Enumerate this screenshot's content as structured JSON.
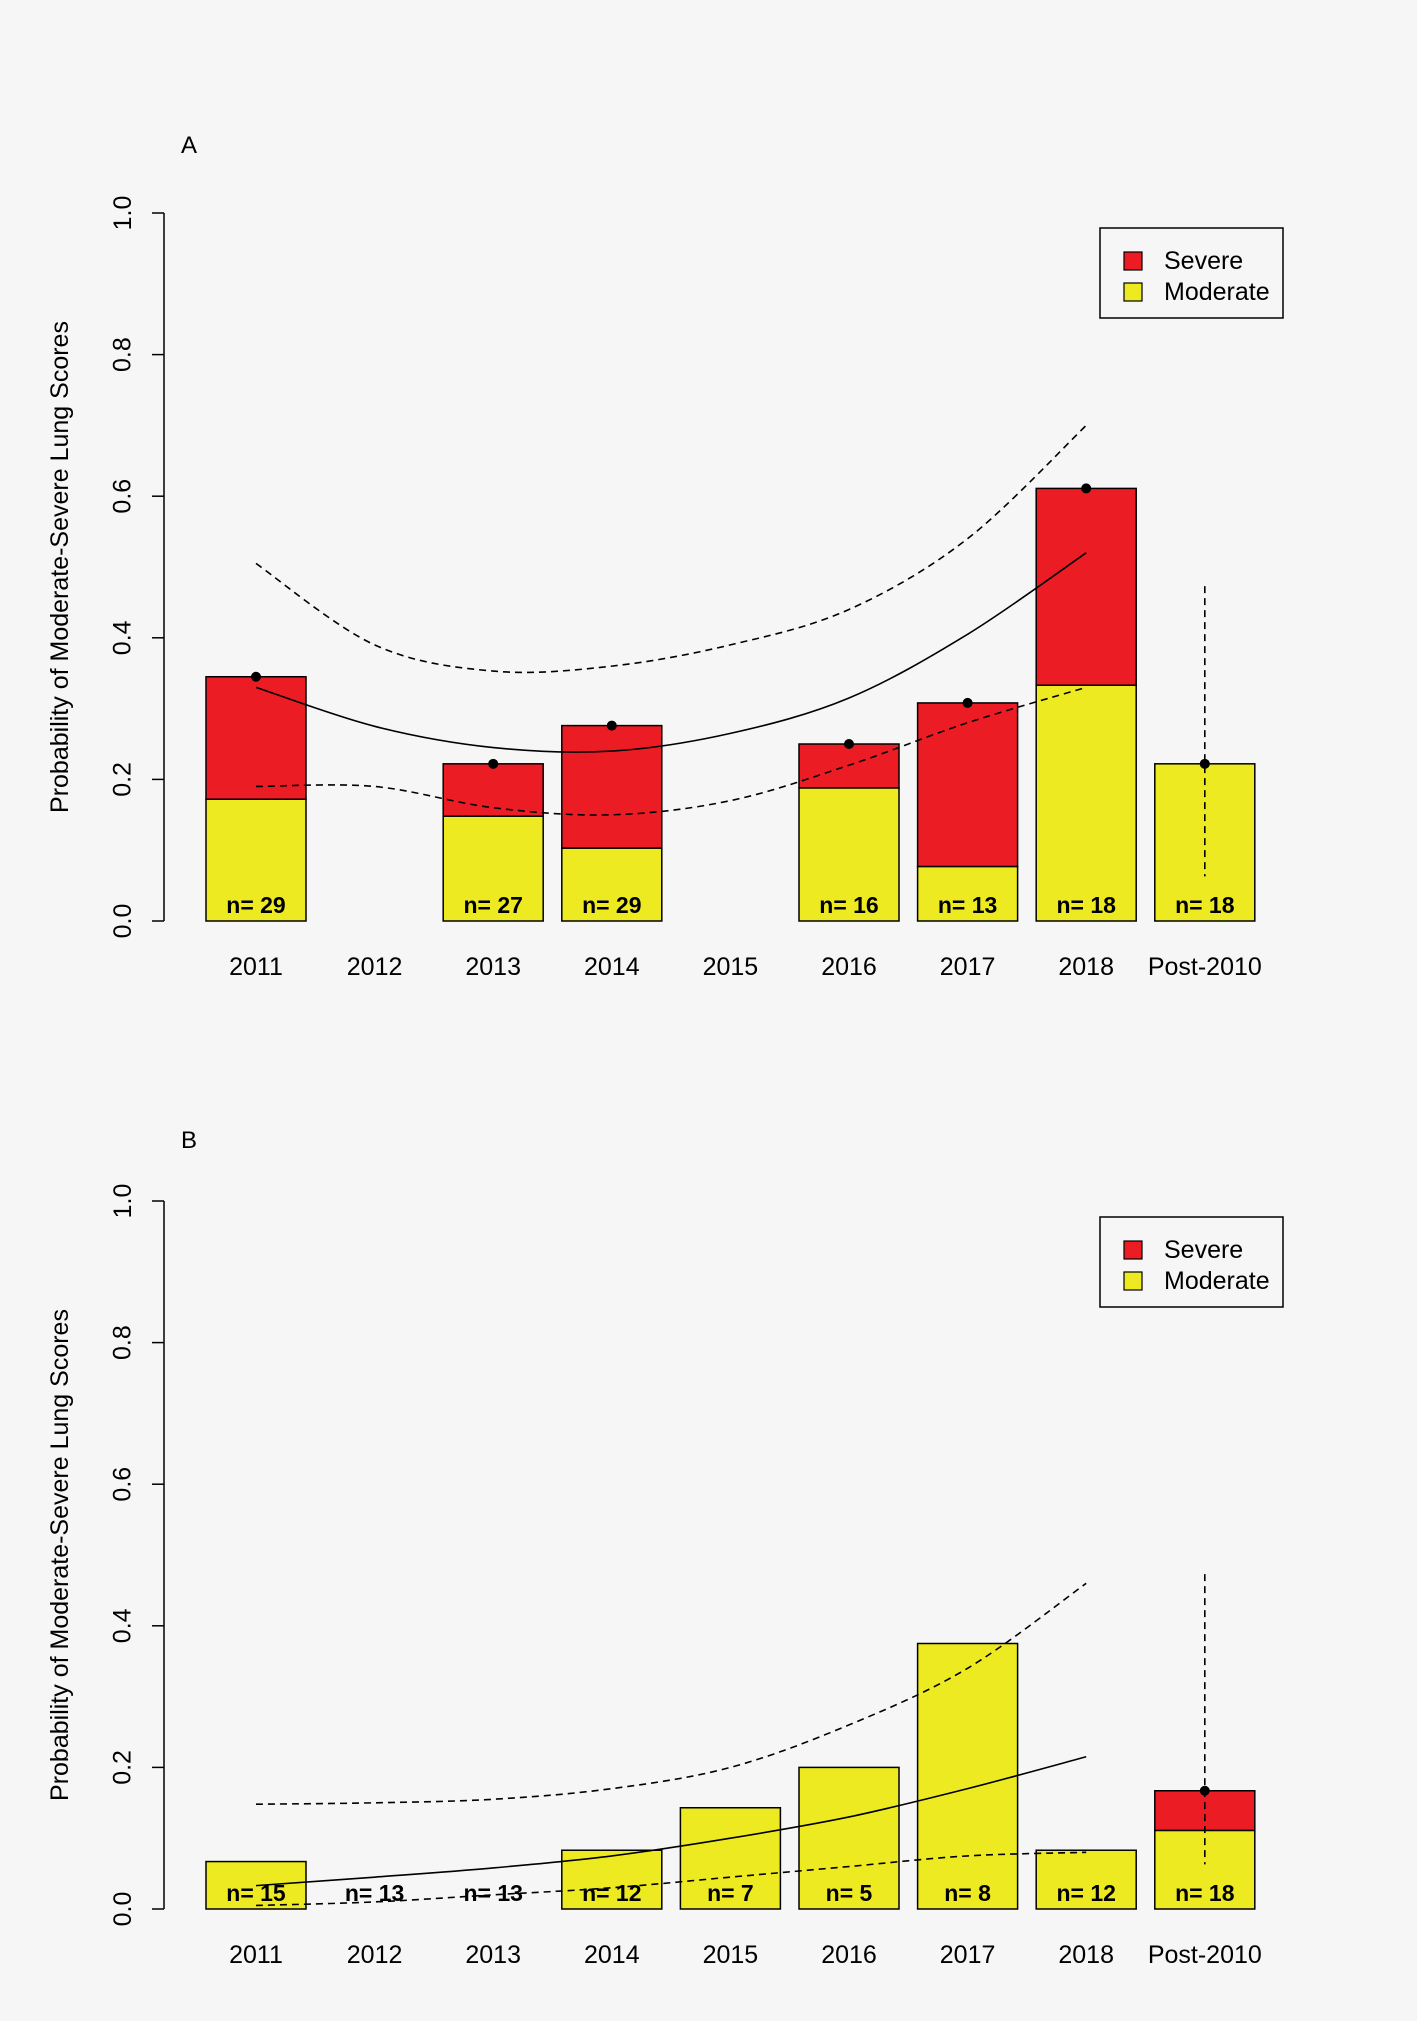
{
  "colors": {
    "severe": "#ec1c24",
    "moderate": "#eeea22",
    "background": "#f5f6f5"
  },
  "chart_data": [
    {
      "panel": "A",
      "type": "bar",
      "stacked": true,
      "ylabel": "Probability of Moderate-Severe Lung Scores",
      "ylim": [
        0,
        1
      ],
      "yticks": [
        "0.0",
        "0.2",
        "0.4",
        "0.6",
        "0.8",
        "1.0"
      ],
      "categories": [
        "2011",
        "2012",
        "2013",
        "2014",
        "2015",
        "2016",
        "2017",
        "2018",
        "Post-2010"
      ],
      "series": [
        {
          "name": "Moderate",
          "values": [
            0.172,
            null,
            0.148,
            0.103,
            null,
            0.188,
            0.077,
            0.333,
            0.222
          ]
        },
        {
          "name": "Severe",
          "values": [
            0.173,
            null,
            0.074,
            0.173,
            null,
            0.062,
            0.231,
            0.278,
            0
          ]
        }
      ],
      "n_labels": [
        "n= 29",
        "",
        "n= 27",
        "n= 29",
        "",
        "n= 16",
        "n= 13",
        "n= 18",
        "n= 18"
      ],
      "points": [
        {
          "x": 0,
          "y": 0.345
        },
        {
          "x": 2,
          "y": 0.222
        },
        {
          "x": 3,
          "y": 0.276
        },
        {
          "x": 5,
          "y": 0.25
        },
        {
          "x": 6,
          "y": 0.308
        },
        {
          "x": 7,
          "y": 0.611
        },
        {
          "x": 8,
          "y": 0.222
        }
      ],
      "fit": {
        "x": [
          0,
          1,
          2,
          3,
          4,
          5,
          6,
          7
        ],
        "y": [
          0.33,
          0.275,
          0.245,
          0.24,
          0.265,
          0.315,
          0.405,
          0.52
        ]
      },
      "fit_lower": {
        "x": [
          0,
          1,
          2,
          3,
          4,
          5,
          6,
          7
        ],
        "y": [
          0.19,
          0.19,
          0.16,
          0.15,
          0.17,
          0.22,
          0.28,
          0.33
        ]
      },
      "fit_upper": {
        "x": [
          0,
          1,
          2,
          3,
          4,
          5,
          6,
          7
        ],
        "y": [
          0.505,
          0.39,
          0.353,
          0.36,
          0.39,
          0.44,
          0.54,
          0.7
        ]
      },
      "post_ci": {
        "x": 8,
        "low": 0.063,
        "high": 0.473
      },
      "legend": [
        "Severe",
        "Moderate"
      ]
    },
    {
      "panel": "B",
      "type": "bar",
      "stacked": true,
      "ylabel": "Probability of Moderate-Severe Lung Scores",
      "ylim": [
        0,
        1
      ],
      "yticks": [
        "0.0",
        "0.2",
        "0.4",
        "0.6",
        "0.8",
        "1.0"
      ],
      "categories": [
        "2011",
        "2012",
        "2013",
        "2014",
        "2015",
        "2016",
        "2017",
        "2018",
        "Post-2010"
      ],
      "series": [
        {
          "name": "Moderate",
          "values": [
            0.067,
            0,
            0,
            0.083,
            0.143,
            0.2,
            0.375,
            0.083,
            0.111
          ]
        },
        {
          "name": "Severe",
          "values": [
            0,
            0,
            0,
            0,
            0,
            0,
            0,
            0,
            0.056
          ]
        }
      ],
      "n_labels": [
        "n= 15",
        "n= 13",
        "n= 13",
        "n= 12",
        "n= 7",
        "n= 5",
        "n= 8",
        "n= 12",
        "n= 18"
      ],
      "points": [
        {
          "x": 8,
          "y": 0.167
        }
      ],
      "fit": {
        "x": [
          0,
          1,
          2,
          3,
          4,
          5,
          6,
          7
        ],
        "y": [
          0.033,
          0.045,
          0.058,
          0.075,
          0.1,
          0.13,
          0.17,
          0.215
        ]
      },
      "fit_lower": {
        "x": [
          0,
          1,
          2,
          3,
          4,
          5,
          6,
          7
        ],
        "y": [
          0.005,
          0.01,
          0.02,
          0.03,
          0.045,
          0.06,
          0.075,
          0.08
        ]
      },
      "fit_upper": {
        "x": [
          0,
          1,
          2,
          3,
          4,
          5,
          6,
          7
        ],
        "y": [
          0.148,
          0.15,
          0.155,
          0.17,
          0.2,
          0.26,
          0.34,
          0.46
        ]
      },
      "post_ci": {
        "x": 8,
        "low": 0.063,
        "high": 0.473
      },
      "legend": [
        "Severe",
        "Moderate"
      ]
    }
  ]
}
